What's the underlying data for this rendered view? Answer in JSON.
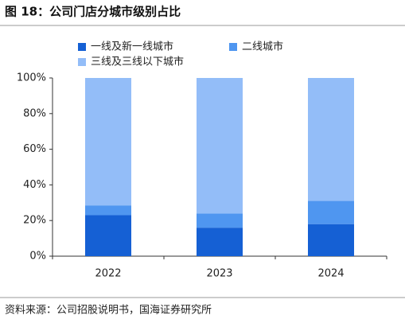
{
  "chart_data": {
    "type": "stacked_bar",
    "title": "图 18：公司门店分城市级别占比",
    "source": "资料来源：公司招股说明书，国海证券研究所",
    "categories": [
      "2022",
      "2023",
      "2024"
    ],
    "series": [
      {
        "name": "一线及新一线城市",
        "color": "#1560d4",
        "values": [
          23,
          16,
          18
        ]
      },
      {
        "name": "二线城市",
        "color": "#4f96f0",
        "values": [
          5.5,
          8,
          13
        ]
      },
      {
        "name": "三线及三线以下城市",
        "color": "#93bdf8",
        "values": [
          71.5,
          76,
          69
        ]
      }
    ],
    "ylim": [
      0,
      100
    ],
    "yticks": [
      {
        "value": 0,
        "label": "0%"
      },
      {
        "value": 20,
        "label": "20%"
      },
      {
        "value": 40,
        "label": "40%"
      },
      {
        "value": 60,
        "label": "60%"
      },
      {
        "value": 80,
        "label": "80%"
      },
      {
        "value": 100,
        "label": "100%"
      }
    ],
    "grid": false
  }
}
